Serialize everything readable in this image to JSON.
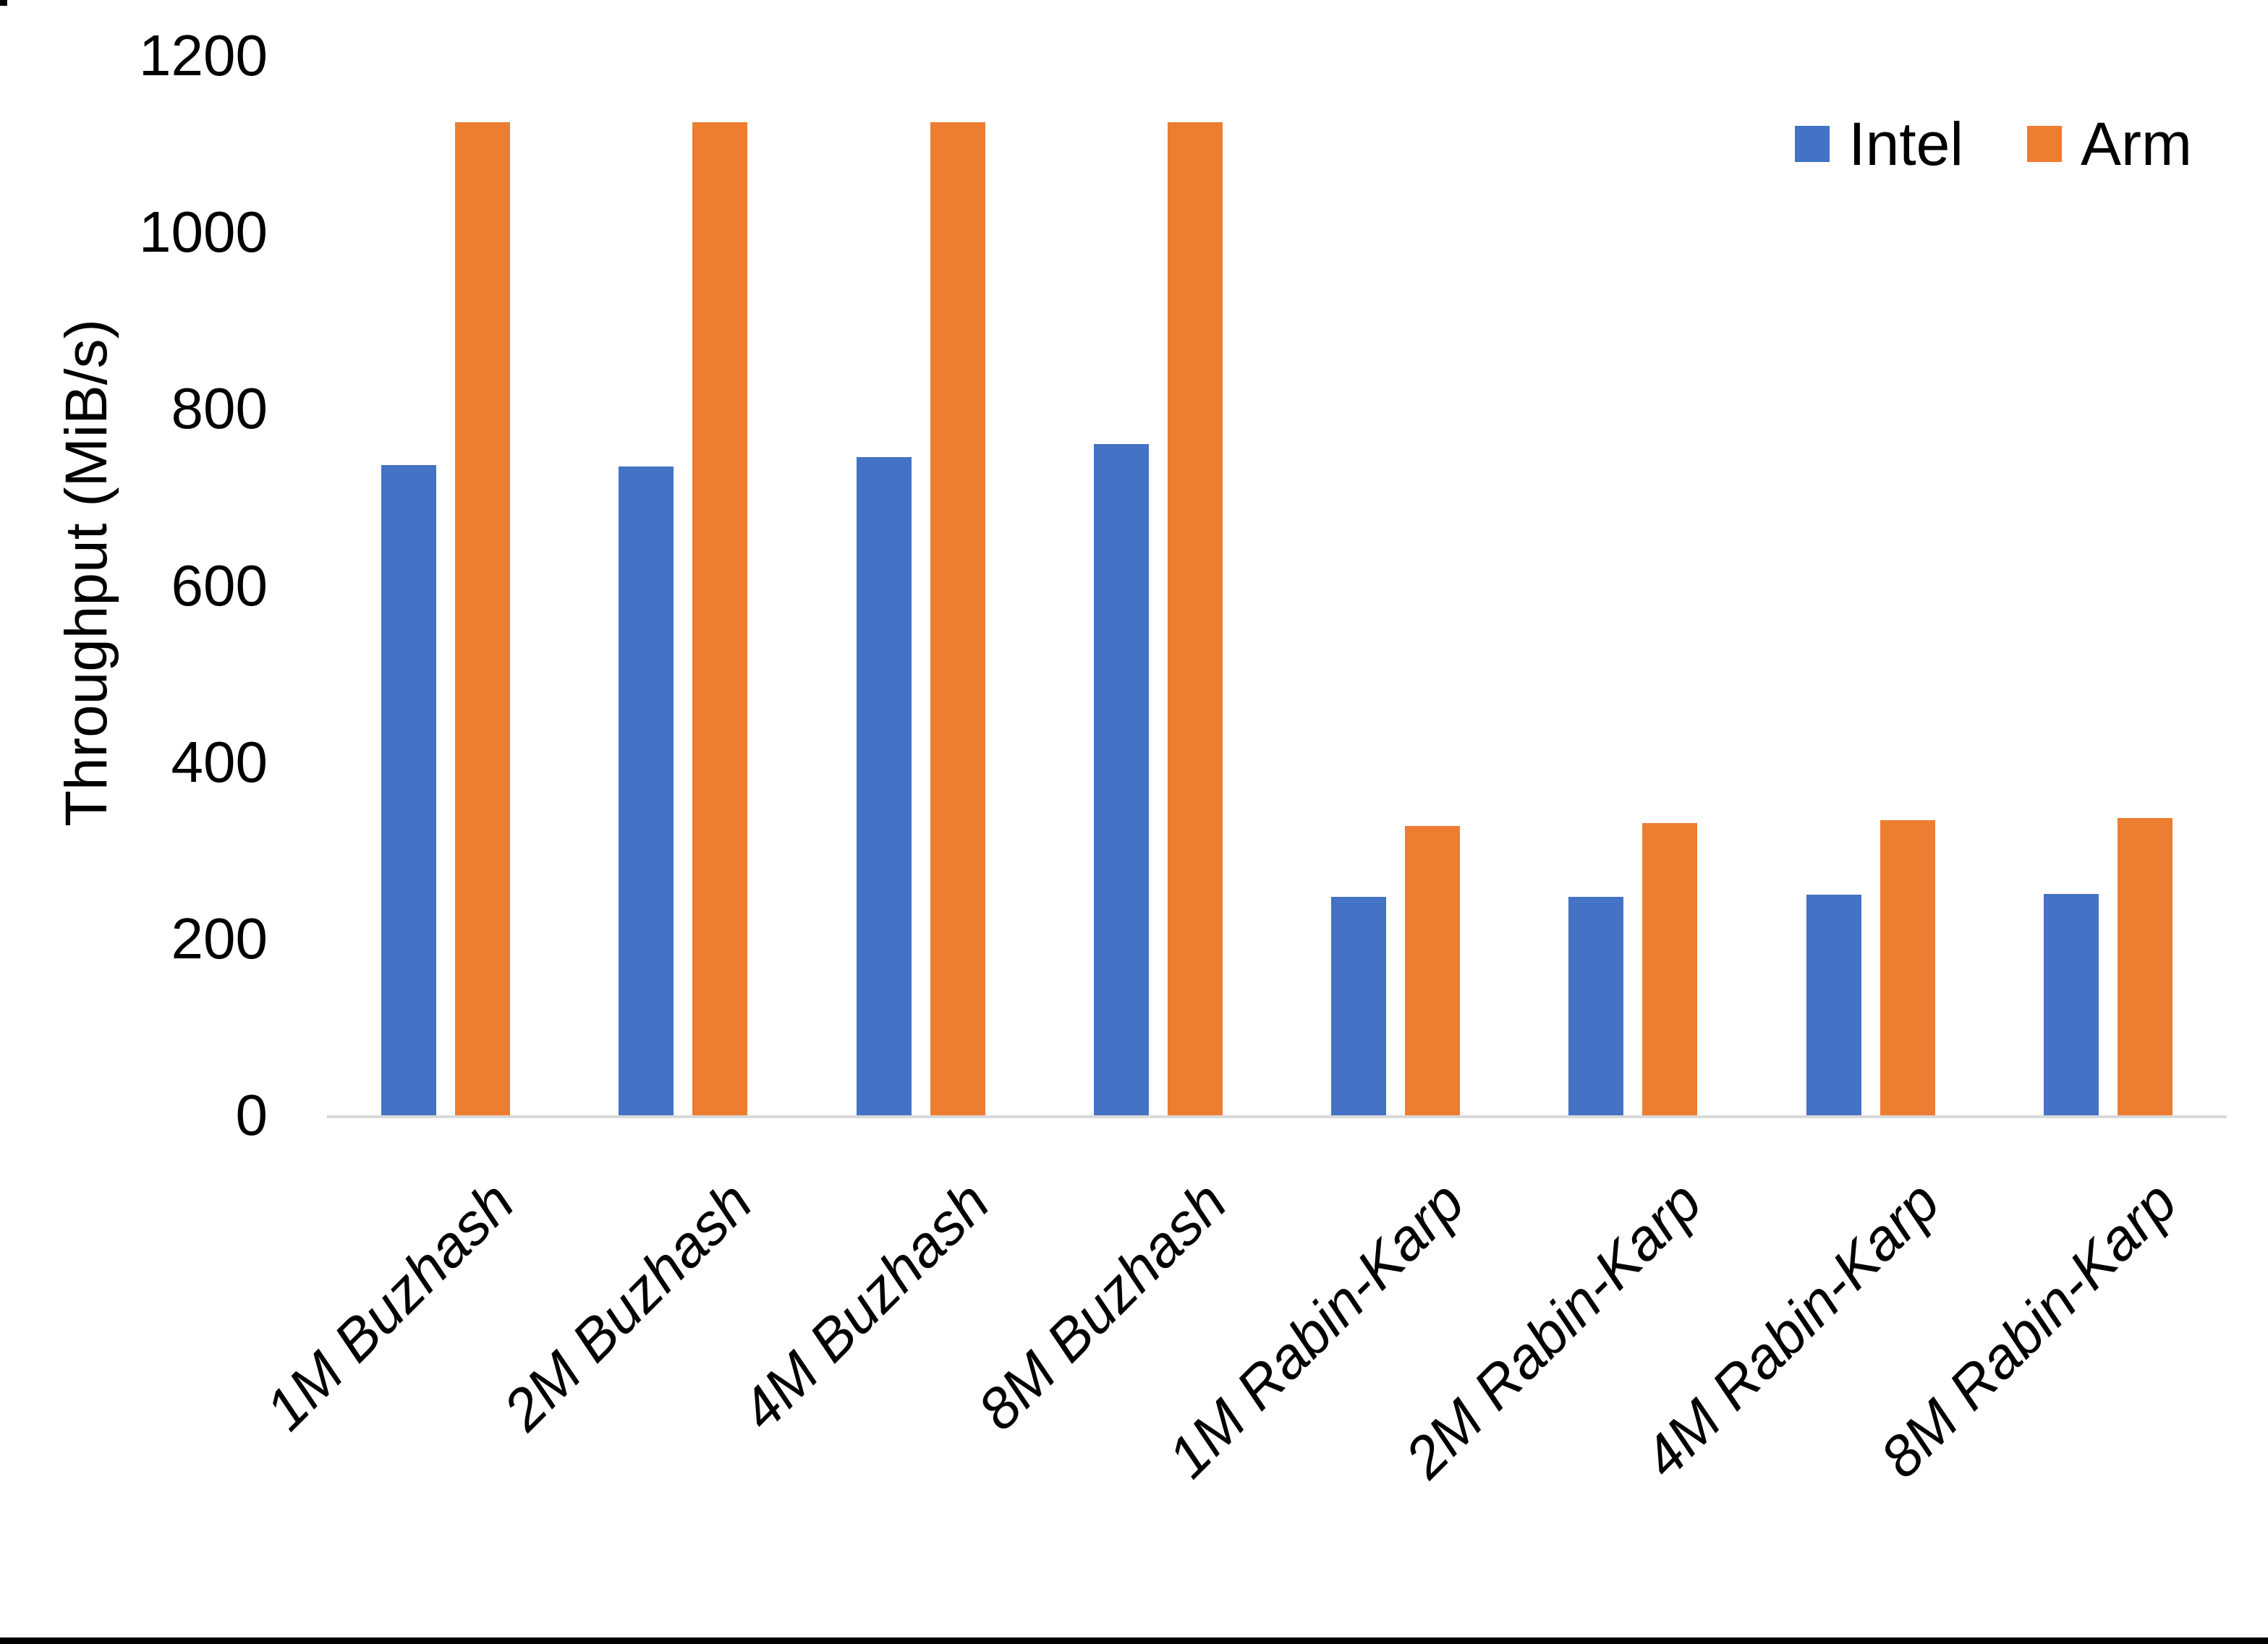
{
  "chart_data": {
    "type": "bar",
    "title": "",
    "xlabel": "",
    "ylabel": "Throughput (MiB/s)",
    "ylim": [
      0,
      1200
    ],
    "ytick_step": 200,
    "grid": false,
    "legend_position": "top-right",
    "categories": [
      "1M Buzhash",
      "2M Buzhash",
      "4M Buzhash",
      "8M Buzhash",
      "1M Rabin-Karp",
      "2M Rabin-Karp",
      "4M Rabin-Karp",
      "8M Rabin-Karp"
    ],
    "series": [
      {
        "name": "Intel",
        "color": "#4472C4",
        "values": [
          736,
          735,
          745,
          760,
          247,
          247,
          250,
          251
        ]
      },
      {
        "name": "Arm",
        "color": "#ED7D31",
        "values": [
          1125,
          1125,
          1125,
          1125,
          328,
          331,
          334,
          337
        ]
      }
    ]
  }
}
